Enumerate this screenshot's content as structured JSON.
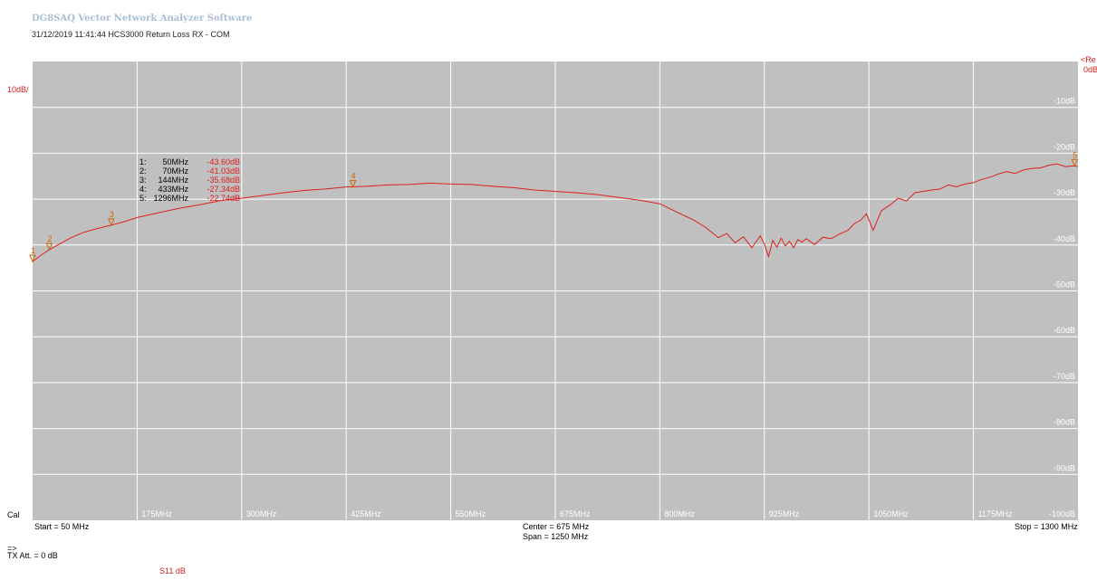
{
  "app_title": "DG8SAQ Vector Network Analyzer Software",
  "subtitle": "31/12/2019   11:41:44   HCS3000 Return Loss RX - COM",
  "scale_label": "10dB/",
  "ref_label_top": "<Re",
  "ref_label_bottom": "0dB",
  "cal_label": "Cal",
  "start_label": "Start = 50 MHz",
  "center_label": "Center = 675 MHz",
  "span_label": "Span = 1250 MHz",
  "stop_label": "Stop = 1300 MHz",
  "prompt_label": "=>",
  "tx_att_label": "TX Att.  = 0 dB",
  "trace_label": "S11   dB",
  "colors": {
    "plot_bg": "#c0c0c0",
    "grid": "#ffffff",
    "trace": "#dd2020",
    "marker": "#cc6600",
    "axis_text": "#ffffff"
  },
  "chart_data": {
    "type": "line",
    "title": "HCS3000 Return Loss RX - COM",
    "xlabel": "",
    "ylabel": "",
    "xlim": [
      50,
      1300
    ],
    "ylim": [
      -100,
      0
    ],
    "x_ticks": [
      "175MHz",
      "300MHz",
      "425MHz",
      "550MHz",
      "675MHz",
      "800MHz",
      "925MHz",
      "1050MHz",
      "1175MHz"
    ],
    "y_ticks": [
      "-10dB",
      "-20dB",
      "-30dB",
      "-40dB",
      "-50dB",
      "-60dB",
      "-70dB",
      "-80dB",
      "-90dB",
      "-100dB"
    ],
    "grid": true,
    "series": [
      {
        "name": "S11",
        "x": [
          50,
          60,
          70,
          80,
          95,
          110,
          125,
          144,
          160,
          175,
          200,
          225,
          250,
          275,
          300,
          325,
          350,
          375,
          400,
          425,
          450,
          475,
          500,
          525,
          550,
          575,
          600,
          625,
          650,
          675,
          700,
          725,
          750,
          775,
          800,
          820,
          840,
          855,
          870,
          880,
          890,
          900,
          910,
          920,
          925,
          930,
          935,
          940,
          945,
          950,
          955,
          960,
          965,
          970,
          975,
          985,
          995,
          1005,
          1015,
          1025,
          1032,
          1040,
          1047,
          1050,
          1055,
          1065,
          1075,
          1085,
          1095,
          1105,
          1115,
          1125,
          1135,
          1145,
          1155,
          1165,
          1175,
          1185,
          1195,
          1205,
          1215,
          1225,
          1235,
          1245,
          1255,
          1265,
          1275,
          1285,
          1296,
          1300
        ],
        "values": [
          -43.6,
          -42.2,
          -41.03,
          -40.0,
          -38.5,
          -37.3,
          -36.5,
          -35.68,
          -34.9,
          -34.0,
          -33.0,
          -32.0,
          -31.2,
          -30.3,
          -29.8,
          -29.2,
          -28.6,
          -28.1,
          -27.8,
          -27.34,
          -27.2,
          -26.9,
          -26.8,
          -26.5,
          -26.7,
          -26.8,
          -27.2,
          -27.5,
          -28.0,
          -28.3,
          -28.6,
          -29.0,
          -29.6,
          -30.2,
          -31.0,
          -32.8,
          -34.5,
          -36.2,
          -38.4,
          -37.5,
          -39.5,
          -38.2,
          -40.6,
          -38.0,
          -39.8,
          -42.5,
          -39.0,
          -40.5,
          -38.5,
          -40.2,
          -39.2,
          -40.6,
          -38.8,
          -39.4,
          -38.6,
          -39.9,
          -38.3,
          -38.6,
          -37.6,
          -36.8,
          -35.4,
          -34.6,
          -33.2,
          -34.5,
          -36.8,
          -32.5,
          -31.3,
          -29.8,
          -30.4,
          -28.6,
          -28.3,
          -28.0,
          -27.8,
          -26.9,
          -27.3,
          -26.7,
          -26.4,
          -25.7,
          -25.2,
          -24.5,
          -24.0,
          -24.4,
          -23.6,
          -23.3,
          -23.2,
          -22.6,
          -22.3,
          -22.9,
          -22.74,
          -22.9
        ]
      }
    ],
    "markers": [
      {
        "num": "1",
        "freq": "50MHz",
        "level": "-43.60dB",
        "x": 50,
        "y": -43.6
      },
      {
        "num": "2",
        "freq": "70MHz",
        "level": "-41.03dB",
        "x": 70,
        "y": -41.03
      },
      {
        "num": "3",
        "freq": "144MHz",
        "level": "-35.68dB",
        "x": 144,
        "y": -35.68
      },
      {
        "num": "4",
        "freq": "433MHz",
        "level": "-27.34dB",
        "x": 433,
        "y": -27.34
      },
      {
        "num": "5",
        "freq": "1296MHz",
        "level": "-22.74dB",
        "x": 1296,
        "y": -22.74
      }
    ]
  }
}
